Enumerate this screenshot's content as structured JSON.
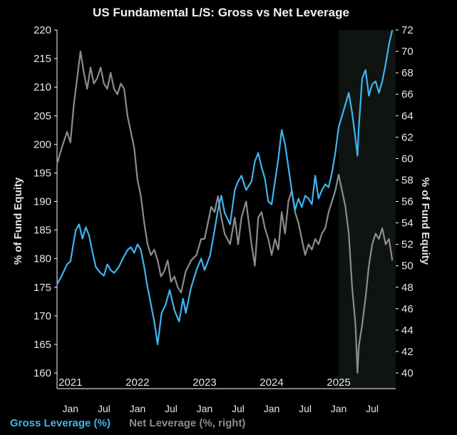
{
  "chart_data": {
    "type": "line",
    "title": "US Fundamental L/S: Gross vs Net Leverage",
    "ylabel_left": "% of Fund Equity",
    "ylabel_right": "% of Fund Equity",
    "ylim_left": [
      160,
      220
    ],
    "ylim_right": [
      40,
      72
    ],
    "yticks_left": [
      160,
      165,
      170,
      175,
      180,
      185,
      190,
      195,
      200,
      205,
      210,
      215,
      220
    ],
    "yticks_right": [
      40,
      42,
      44,
      46,
      48,
      50,
      52,
      54,
      56,
      58,
      60,
      62,
      64,
      66,
      68,
      70,
      72
    ],
    "xlim": [
      2020.8,
      2025.85
    ],
    "year_labels": [
      {
        "label": "2021",
        "x": 2021.0
      },
      {
        "label": "2022",
        "x": 2022.0
      },
      {
        "label": "2023",
        "x": 2023.0
      },
      {
        "label": "2024",
        "x": 2024.0
      },
      {
        "label": "2025",
        "x": 2025.0
      }
    ],
    "month_labels": [
      {
        "label": "Jan",
        "x": 2021.0
      },
      {
        "label": "Jul",
        "x": 2021.5
      },
      {
        "label": "Jan",
        "x": 2022.0
      },
      {
        "label": "Jul",
        "x": 2022.5
      },
      {
        "label": "Jan",
        "x": 2023.0
      },
      {
        "label": "Jul",
        "x": 2023.5
      },
      {
        "label": "Jan",
        "x": 2024.0
      },
      {
        "label": "Jul",
        "x": 2024.5
      },
      {
        "label": "Jan",
        "x": 2025.0
      },
      {
        "label": "Jul",
        "x": 2025.5
      }
    ],
    "shaded_region": [
      2025.0,
      2025.85
    ],
    "colors": {
      "gross": "#3fb5f0",
      "net": "#8c8c8c",
      "shade": "#0f1410"
    },
    "series": [
      {
        "name": "Gross Leverage (%)",
        "axis": "left",
        "x": [
          2020.8,
          2020.87,
          2020.95,
          2021.0,
          2021.05,
          2021.08,
          2021.13,
          2021.18,
          2021.23,
          2021.28,
          2021.33,
          2021.38,
          2021.45,
          2021.5,
          2021.55,
          2021.6,
          2021.65,
          2021.72,
          2021.78,
          2021.85,
          2021.9,
          2021.95,
          2022.0,
          2022.05,
          2022.1,
          2022.15,
          2022.2,
          2022.25,
          2022.3,
          2022.36,
          2022.42,
          2022.48,
          2022.55,
          2022.62,
          2022.68,
          2022.72,
          2022.8,
          2022.88,
          2022.95,
          2023.0,
          2023.08,
          2023.15,
          2023.2,
          2023.25,
          2023.3,
          2023.38,
          2023.45,
          2023.5,
          2023.55,
          2023.62,
          2023.7,
          2023.75,
          2023.8,
          2023.85,
          2023.9,
          2023.95,
          2024.0,
          2024.05,
          2024.1,
          2024.15,
          2024.2,
          2024.25,
          2024.3,
          2024.35,
          2024.4,
          2024.45,
          2024.5,
          2024.55,
          2024.6,
          2024.65,
          2024.7,
          2024.75,
          2024.8,
          2024.85,
          2024.9,
          2024.95,
          2025.0,
          2025.05,
          2025.1,
          2025.15,
          2025.2,
          2025.25,
          2025.28,
          2025.3,
          2025.35,
          2025.4,
          2025.45,
          2025.5,
          2025.55,
          2025.6,
          2025.65,
          2025.7,
          2025.75,
          2025.8
        ],
        "values": [
          175.5,
          177.0,
          179.0,
          179.5,
          183.0,
          185.0,
          186.0,
          183.5,
          185.5,
          184.0,
          181.0,
          178.5,
          177.5,
          177.0,
          179.0,
          178.0,
          177.5,
          178.5,
          180.0,
          181.5,
          182.0,
          181.0,
          182.5,
          181.5,
          178.5,
          175.0,
          172.0,
          169.0,
          165.0,
          170.5,
          172.0,
          174.5,
          171.0,
          169.0,
          173.0,
          170.5,
          175.0,
          178.0,
          180.0,
          178.0,
          180.5,
          185.0,
          188.5,
          191.0,
          188.0,
          186.0,
          192.0,
          193.5,
          194.5,
          192.0,
          193.5,
          197.0,
          198.5,
          196.0,
          194.0,
          190.0,
          189.5,
          193.5,
          197.5,
          202.5,
          200.0,
          196.0,
          192.0,
          188.5,
          190.5,
          189.0,
          191.0,
          190.5,
          189.5,
          194.5,
          190.5,
          192.0,
          193.0,
          192.5,
          195.0,
          198.5,
          203.0,
          205.0,
          207.0,
          209.0,
          205.5,
          201.0,
          198.0,
          203.0,
          211.5,
          213.0,
          208.5,
          210.5,
          211.0,
          209.0,
          211.0,
          214.0,
          217.5,
          220.0
        ]
      },
      {
        "name": "Net Leverage (%, right)",
        "axis": "right",
        "x": [
          2020.8,
          2020.87,
          2020.95,
          2021.0,
          2021.05,
          2021.1,
          2021.15,
          2021.2,
          2021.25,
          2021.3,
          2021.35,
          2021.4,
          2021.45,
          2021.5,
          2021.55,
          2021.6,
          2021.65,
          2021.7,
          2021.75,
          2021.8,
          2021.85,
          2021.9,
          2021.95,
          2022.0,
          2022.05,
          2022.1,
          2022.15,
          2022.2,
          2022.25,
          2022.3,
          2022.35,
          2022.4,
          2022.45,
          2022.5,
          2022.55,
          2022.6,
          2022.65,
          2022.72,
          2022.8,
          2022.88,
          2022.95,
          2023.0,
          2023.05,
          2023.1,
          2023.15,
          2023.2,
          2023.25,
          2023.3,
          2023.38,
          2023.45,
          2023.5,
          2023.55,
          2023.62,
          2023.7,
          2023.75,
          2023.8,
          2023.85,
          2023.9,
          2023.95,
          2024.0,
          2024.05,
          2024.1,
          2024.15,
          2024.2,
          2024.25,
          2024.3,
          2024.35,
          2024.4,
          2024.45,
          2024.5,
          2024.55,
          2024.6,
          2024.65,
          2024.7,
          2024.75,
          2024.8,
          2024.85,
          2024.9,
          2024.95,
          2025.0,
          2025.05,
          2025.1,
          2025.15,
          2025.2,
          2025.25,
          2025.28,
          2025.3,
          2025.35,
          2025.4,
          2025.45,
          2025.5,
          2025.55,
          2025.6,
          2025.65,
          2025.7,
          2025.75,
          2025.8
        ],
        "values": [
          59.5,
          61.0,
          62.5,
          61.5,
          65.0,
          67.5,
          70.0,
          68.0,
          66.5,
          68.5,
          67.0,
          67.5,
          68.5,
          67.0,
          66.5,
          68.0,
          66.5,
          66.0,
          67.0,
          66.5,
          64.0,
          62.5,
          61.0,
          58.0,
          56.5,
          54.0,
          52.0,
          51.0,
          51.5,
          50.5,
          49.0,
          49.5,
          50.5,
          48.5,
          49.0,
          48.0,
          47.5,
          49.5,
          50.5,
          51.0,
          52.5,
          52.5,
          54.0,
          55.5,
          55.0,
          56.5,
          54.5,
          53.0,
          52.0,
          54.5,
          52.0,
          54.5,
          56.0,
          52.0,
          50.0,
          54.5,
          55.0,
          53.5,
          52.5,
          51.0,
          52.5,
          51.5,
          55.0,
          53.0,
          56.0,
          57.0,
          55.0,
          54.0,
          52.5,
          51.0,
          52.0,
          51.5,
          52.5,
          52.0,
          53.0,
          53.5,
          55.0,
          56.0,
          57.0,
          58.5,
          57.0,
          55.5,
          53.0,
          48.0,
          44.5,
          40.0,
          42.5,
          44.5,
          47.0,
          50.0,
          52.0,
          53.0,
          52.5,
          53.5,
          52.0,
          52.5,
          50.5
        ]
      }
    ],
    "legend": {
      "gross": "Gross Leverage (%)",
      "net": "Net Leverage (%, right)"
    }
  }
}
